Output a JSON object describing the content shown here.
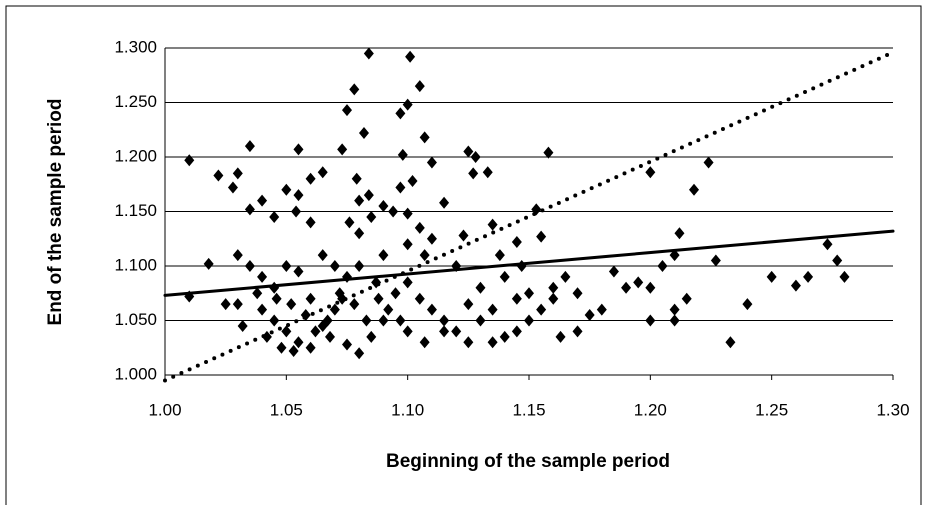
{
  "chart_data": {
    "type": "scatter",
    "xlabel": "Beginning of the sample period",
    "ylabel": "End of the sample period",
    "xlim": [
      1.0,
      1.3
    ],
    "xticks": [
      {
        "value": 1.0,
        "label": "1.00"
      },
      1.05,
      {
        "value": 1.1,
        "label": "1.10"
      },
      1.15,
      {
        "value": 1.2,
        "label": "1.20"
      },
      1.25,
      {
        "value": 1.3,
        "label": "1.30"
      }
    ],
    "ylim": [
      1.0,
      1.3
    ],
    "yticks": [
      {
        "value": 1.0,
        "label": "1.000"
      },
      {
        "value": 1.05,
        "label": "1.050"
      },
      {
        "value": 1.1,
        "label": "1.100"
      },
      {
        "value": 1.15,
        "label": "1.150"
      },
      {
        "value": 1.2,
        "label": "1.200"
      },
      {
        "value": 1.25,
        "label": "1.250"
      },
      {
        "value": 1.3,
        "label": "1.300"
      }
    ],
    "grid": true,
    "x": [
      1.035,
      1.01,
      1.03,
      1.028,
      1.055,
      1.05,
      1.055,
      1.054,
      1.06,
      1.065,
      1.073,
      1.075,
      1.078,
      1.084,
      1.101,
      1.105,
      1.097,
      1.1,
      1.082,
      1.107,
      1.098,
      1.11,
      1.125,
      1.128,
      1.127,
      1.133,
      1.158,
      1.2,
      1.218,
      1.224,
      1.115,
      1.09,
      1.094,
      1.097,
      1.102,
      1.079,
      1.08,
      1.084,
      1.076,
      1.085,
      1.1,
      1.105,
      1.08,
      1.04,
      1.035,
      1.022,
      1.045,
      1.06,
      1.153,
      1.155,
      1.135,
      1.145,
      1.123,
      1.11,
      1.107,
      1.138,
      1.147,
      1.14,
      1.12,
      1.1,
      1.09,
      1.03,
      1.018,
      1.01,
      1.025,
      1.035,
      1.04,
      1.045,
      1.05,
      1.055,
      1.065,
      1.07,
      1.075,
      1.08,
      1.06,
      1.04,
      1.045,
      1.05,
      1.055,
      1.06,
      1.065,
      1.07,
      1.072,
      1.078,
      1.083,
      1.085,
      1.08,
      1.075,
      1.068,
      1.058,
      1.052,
      1.046,
      1.038,
      1.03,
      1.032,
      1.042,
      1.048,
      1.053,
      1.062,
      1.067,
      1.073,
      1.088,
      1.092,
      1.097,
      1.1,
      1.095,
      1.1,
      1.105,
      1.11,
      1.115,
      1.12,
      1.125,
      1.13,
      1.125,
      1.13,
      1.135,
      1.14,
      1.145,
      1.15,
      1.16,
      1.165,
      1.163,
      1.17,
      1.17,
      1.175,
      1.18,
      1.185,
      1.19,
      1.195,
      1.2,
      1.205,
      1.21,
      1.212,
      1.21,
      1.215,
      1.227,
      1.233,
      1.24,
      1.25,
      1.26,
      1.265,
      1.273,
      1.277,
      1.28,
      1.155,
      1.15,
      1.145,
      1.135,
      1.107,
      1.115,
      1.09,
      1.087,
      1.16,
      1.2,
      1.21
    ],
    "series": [
      {
        "color": "#000000",
        "values": [
          1.21,
          1.197,
          1.185,
          1.172,
          1.207,
          1.17,
          1.165,
          1.15,
          1.18,
          1.186,
          1.207,
          1.243,
          1.262,
          1.295,
          1.292,
          1.265,
          1.24,
          1.248,
          1.222,
          1.218,
          1.202,
          1.195,
          1.205,
          1.2,
          1.185,
          1.186,
          1.204,
          1.186,
          1.17,
          1.195,
          1.158,
          1.155,
          1.15,
          1.172,
          1.178,
          1.18,
          1.16,
          1.165,
          1.14,
          1.145,
          1.148,
          1.135,
          1.13,
          1.16,
          1.152,
          1.183,
          1.145,
          1.14,
          1.152,
          1.127,
          1.138,
          1.122,
          1.128,
          1.125,
          1.11,
          1.11,
          1.1,
          1.09,
          1.1,
          1.12,
          1.11,
          1.11,
          1.102,
          1.072,
          1.065,
          1.1,
          1.09,
          1.08,
          1.1,
          1.095,
          1.11,
          1.1,
          1.09,
          1.1,
          1.07,
          1.06,
          1.05,
          1.04,
          1.03,
          1.025,
          1.045,
          1.06,
          1.075,
          1.065,
          1.05,
          1.035,
          1.02,
          1.028,
          1.035,
          1.055,
          1.065,
          1.07,
          1.075,
          1.065,
          1.045,
          1.035,
          1.025,
          1.022,
          1.04,
          1.05,
          1.07,
          1.07,
          1.06,
          1.05,
          1.04,
          1.075,
          1.085,
          1.07,
          1.06,
          1.05,
          1.04,
          1.03,
          1.05,
          1.065,
          1.08,
          1.06,
          1.035,
          1.07,
          1.075,
          1.07,
          1.09,
          1.035,
          1.04,
          1.075,
          1.055,
          1.06,
          1.095,
          1.08,
          1.085,
          1.05,
          1.1,
          1.11,
          1.13,
          1.06,
          1.07,
          1.105,
          1.03,
          1.065,
          1.09,
          1.082,
          1.09,
          1.12,
          1.105,
          1.09,
          1.06,
          1.05,
          1.04,
          1.03,
          1.03,
          1.04,
          1.05,
          1.085,
          1.08,
          1.08,
          1.05
        ]
      }
    ],
    "lines": [
      {
        "color": "#000000",
        "style": "dotted",
        "x": [
          1.0,
          1.3
        ],
        "values": [
          0.995,
          1.296
        ]
      },
      {
        "color": "#000000",
        "style": "solid",
        "x": [
          1.0,
          1.3
        ],
        "values": [
          1.073,
          1.132
        ]
      }
    ]
  }
}
